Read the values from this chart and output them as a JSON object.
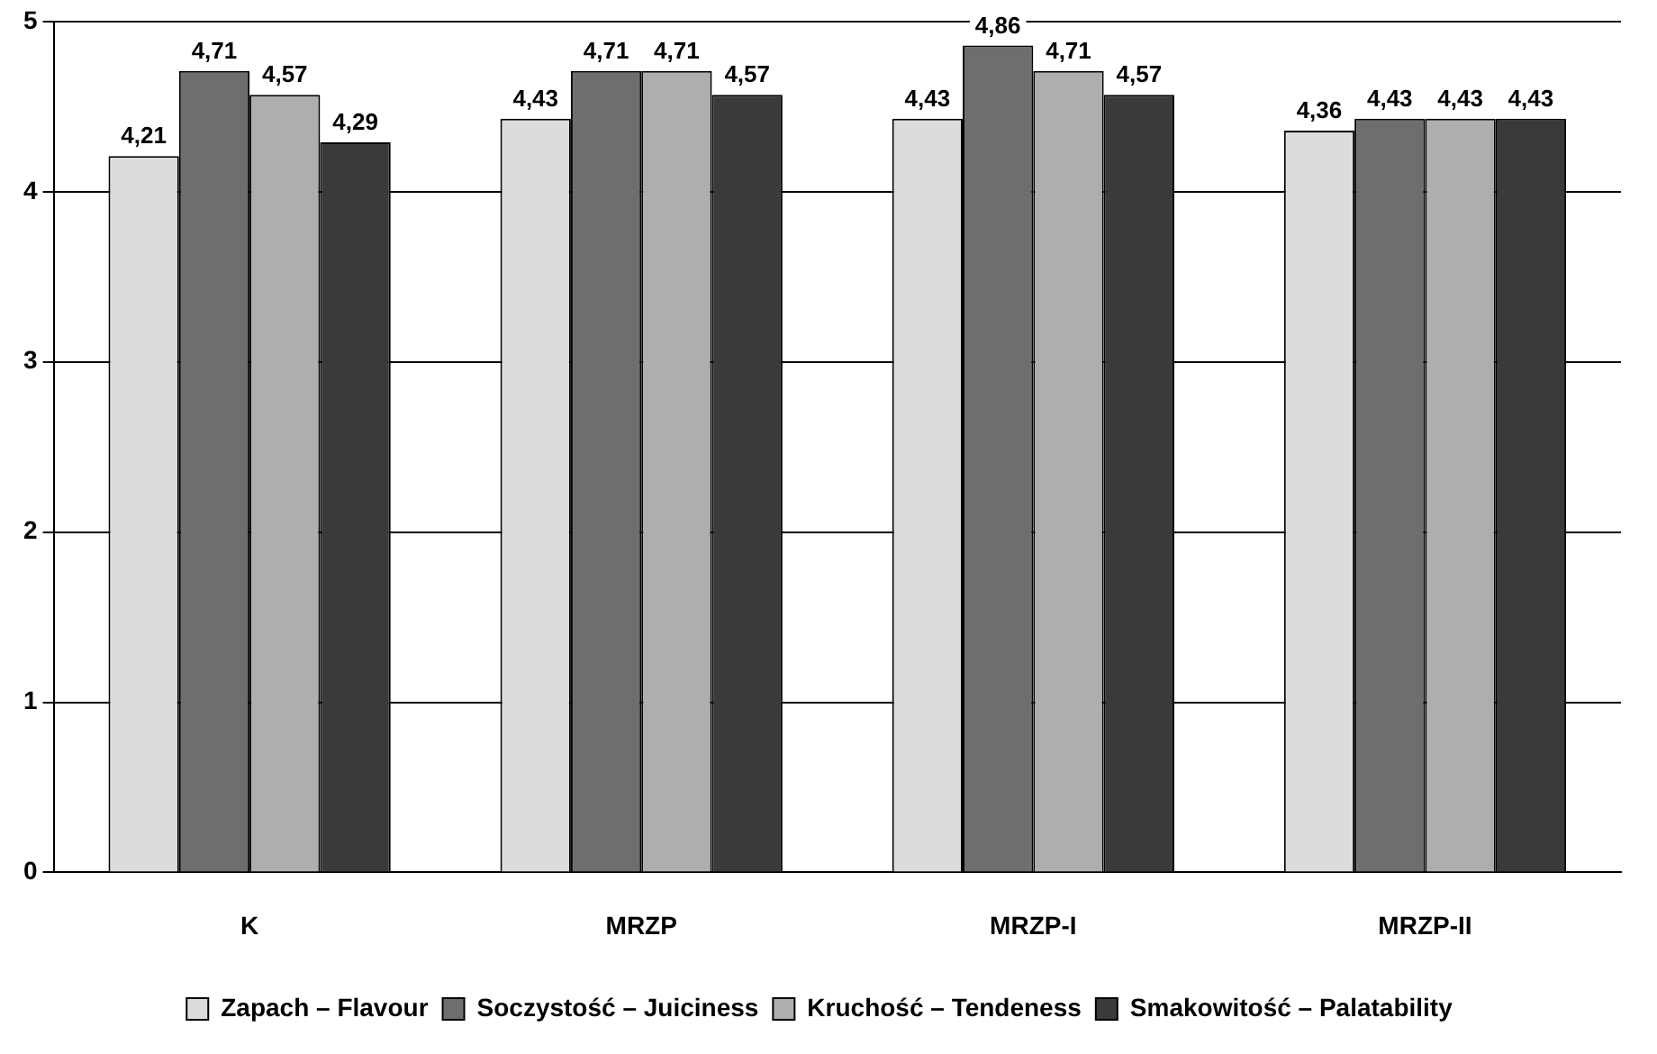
{
  "chart_data": {
    "type": "bar",
    "categories": [
      "K",
      "MRZP",
      "MRZP-I",
      "MRZP-II"
    ],
    "series": [
      {
        "name": "Zapach – Flavour",
        "color": "#dcdcdc",
        "values": [
          4.21,
          4.43,
          4.43,
          4.36
        ],
        "value_labels": [
          "4,21",
          "4,43",
          "4,43",
          "4,36"
        ]
      },
      {
        "name": "Soczystość – Juiciness",
        "color": "#6e6e6e",
        "values": [
          4.71,
          4.71,
          4.86,
          4.43
        ],
        "value_labels": [
          "4,71",
          "4,71",
          "4,86",
          "4,43"
        ]
      },
      {
        "name": "Kruchość – Tendeness",
        "color": "#aeaeae",
        "values": [
          4.57,
          4.71,
          4.71,
          4.43
        ],
        "value_labels": [
          "4,57",
          "4,71",
          "4,71",
          "4,43"
        ]
      },
      {
        "name": "Smakowitość – Palatability",
        "color": "#3a3a3a",
        "values": [
          4.29,
          4.57,
          4.57,
          4.43
        ],
        "value_labels": [
          "4,29",
          "4,57",
          "4,57",
          "4,43"
        ]
      }
    ],
    "ylim": [
      0,
      5
    ],
    "yticks": [
      0,
      1,
      2,
      3,
      4,
      5
    ],
    "grid": "y",
    "legend": "bottom"
  }
}
